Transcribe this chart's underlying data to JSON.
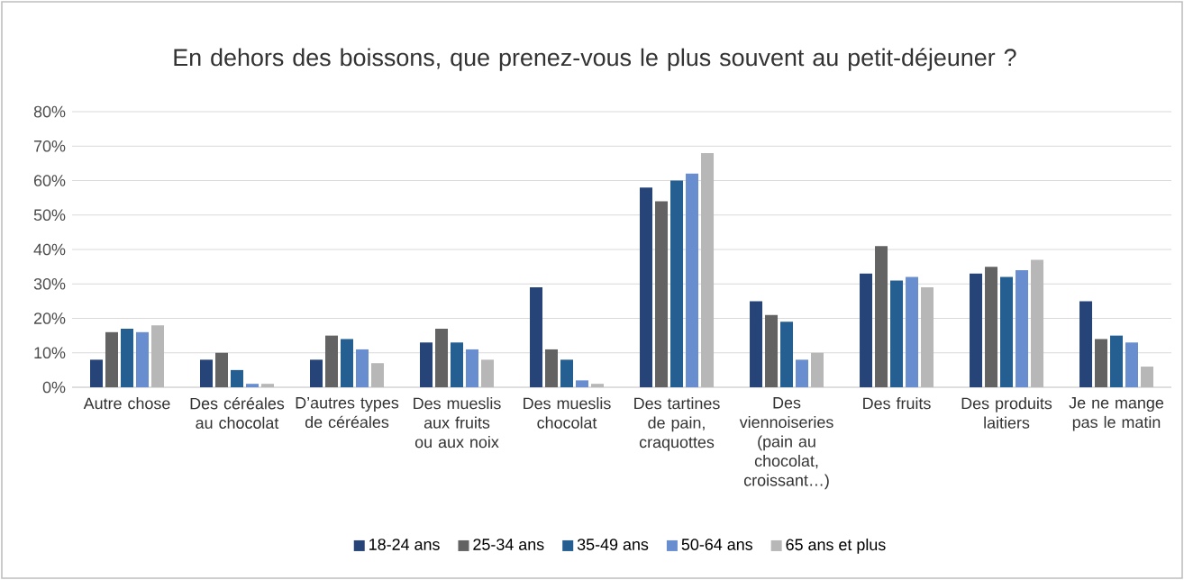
{
  "chart_data": {
    "type": "bar",
    "title": "En dehors des boissons, que prenez-vous le plus souvent au petit-déjeuner ?",
    "categories": [
      "Autre chose",
      "Des céréales au chocolat",
      "D’autres types de céréales",
      "Des mueslis aux fruits ou aux noix",
      "Des mueslis chocolat",
      "Des tartines de pain, craquottes",
      "Des viennoiseries (pain au chocolat, croissant…)",
      "Des fruits",
      "Des produits laitiers",
      "Je ne mange pas le matin"
    ],
    "series": [
      {
        "name": "18-24 ans",
        "color": "#264478",
        "values": [
          8,
          8,
          8,
          13,
          29,
          58,
          25,
          33,
          33,
          25
        ]
      },
      {
        "name": "25-34 ans",
        "color": "#636363",
        "values": [
          16,
          10,
          15,
          17,
          11,
          54,
          21,
          41,
          35,
          14
        ]
      },
      {
        "name": "35-49 ans",
        "color": "#255e91",
        "values": [
          17,
          5,
          14,
          13,
          8,
          60,
          19,
          31,
          32,
          15
        ]
      },
      {
        "name": "50-64 ans",
        "color": "#698ed0",
        "values": [
          16,
          1,
          11,
          11,
          2,
          62,
          8,
          32,
          34,
          13
        ]
      },
      {
        "name": "65 ans et plus",
        "color": "#b7b7b7",
        "values": [
          18,
          1,
          7,
          8,
          1,
          68,
          10,
          29,
          37,
          6
        ]
      }
    ],
    "ylim": [
      0,
      80
    ],
    "yticks": [
      {
        "value": 0,
        "label": "0%"
      },
      {
        "value": 10,
        "label": "10%"
      },
      {
        "value": 20,
        "label": "20%"
      },
      {
        "value": 30,
        "label": "30%"
      },
      {
        "value": 40,
        "label": "40%"
      },
      {
        "value": 50,
        "label": "50%"
      },
      {
        "value": 60,
        "label": "60%"
      },
      {
        "value": 70,
        "label": "70%"
      },
      {
        "value": 80,
        "label": "80%"
      }
    ],
    "grid": "y",
    "legend": "bottom"
  }
}
